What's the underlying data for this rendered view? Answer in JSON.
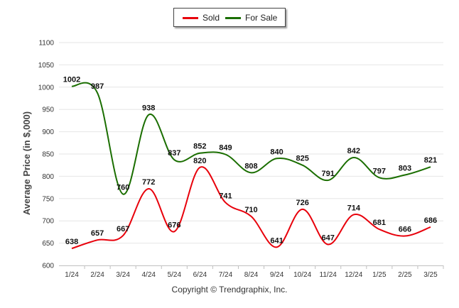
{
  "legend": {
    "sold_label": "Sold",
    "forsale_label": "For Sale",
    "sold_color": "#e8000b",
    "forsale_color": "#1a6e00"
  },
  "footer": {
    "copyright": "Copyright © Trendgraphix, Inc."
  },
  "chart_data": {
    "type": "line",
    "title": "",
    "xlabel": "",
    "ylabel": "Average Price (in $,000)",
    "ylim": [
      600,
      1100
    ],
    "yticks": [
      600,
      650,
      700,
      750,
      800,
      850,
      900,
      950,
      1000,
      1050,
      1100
    ],
    "grid": true,
    "legend_position": "top-center",
    "categories": [
      "1/24",
      "2/24",
      "3/24",
      "4/24",
      "5/24",
      "6/24",
      "7/24",
      "8/24",
      "9/24",
      "10/24",
      "11/24",
      "12/24",
      "1/25",
      "2/25",
      "3/25"
    ],
    "series": [
      {
        "name": "Sold",
        "color": "#e8000b",
        "values": [
          638,
          657,
          667,
          772,
          676,
          820,
          741,
          710,
          641,
          726,
          647,
          714,
          681,
          666,
          686
        ]
      },
      {
        "name": "For Sale",
        "color": "#1a6e00",
        "values": [
          1002,
          987,
          760,
          938,
          837,
          852,
          849,
          808,
          840,
          825,
          791,
          842,
          797,
          803,
          821
        ]
      }
    ]
  }
}
